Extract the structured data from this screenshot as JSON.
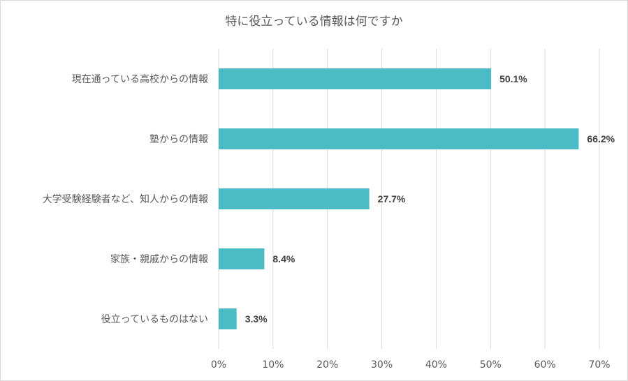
{
  "chart_data": {
    "type": "bar",
    "orientation": "horizontal",
    "title": "特に役立っている情報は何ですか",
    "categories": [
      "現在通っている高校からの情報",
      "塾からの情報",
      "大学受験経験者など、知人からの情報",
      "家族・親戚からの情報",
      "役立っているものはない"
    ],
    "values": [
      50.1,
      66.2,
      27.7,
      8.4,
      3.3
    ],
    "value_labels": [
      "50.1%",
      "66.2%",
      "27.7%",
      "8.4%",
      "3.3%"
    ],
    "xlim": [
      0,
      70
    ],
    "xticks": [
      "0%",
      "10%",
      "20%",
      "30%",
      "40%",
      "50%",
      "60%",
      "70%"
    ],
    "grid": true,
    "bar_color": "#4bbcc5"
  }
}
